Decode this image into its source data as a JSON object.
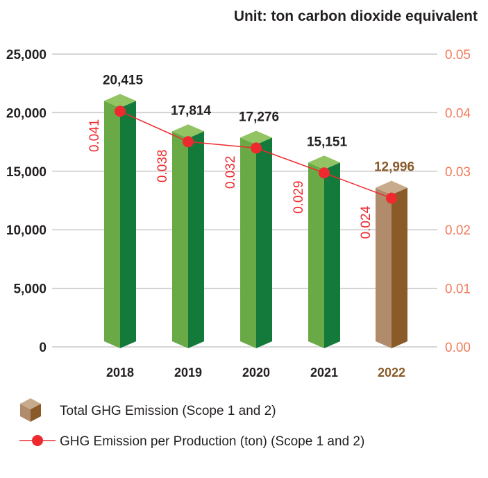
{
  "chart_data": {
    "type": "bar",
    "unit_note": "Unit: ton carbon dioxide equivalent",
    "categories": [
      "2018",
      "2019",
      "2020",
      "2021",
      "2022"
    ],
    "series": [
      {
        "name": "Total GHG Emission (Scope 1 and 2)",
        "axis": "left",
        "type": "bar",
        "values": [
          20415,
          17814,
          17276,
          15151,
          12996
        ],
        "value_labels": [
          "20,415",
          "17,814",
          "17,276",
          "15,151",
          "12,996"
        ]
      },
      {
        "name": "GHG Emission per Production (ton) (Scope 1 and 2)",
        "axis": "right",
        "type": "line",
        "values": [
          0.041,
          0.038,
          0.032,
          0.029,
          0.024
        ],
        "value_labels": [
          "0.041",
          "0.038",
          "0.032",
          "0.029",
          "0.024"
        ]
      }
    ],
    "left_axis": {
      "ylim": [
        0,
        25000
      ],
      "ticks": [
        "0",
        "5,000",
        "10,000",
        "15,000",
        "20,000",
        "25,000"
      ]
    },
    "right_axis": {
      "ylim": [
        0,
        0.05
      ],
      "ticks": [
        "0.00",
        "0.01",
        "0.02",
        "0.03",
        "0.04",
        "0.05"
      ]
    },
    "grid": true,
    "legend_placement": "bottom-left",
    "highlight_category": "2022"
  },
  "colors": {
    "bar_front": "#6aaa46",
    "bar_side": "#137a3c",
    "bar_top": "#92c463",
    "highlight_front": "#b08c6c",
    "highlight_side": "#8a5a28",
    "highlight_top": "#c8ab8c",
    "highlight_text": "#8a5a28",
    "line": "#ee2a2f",
    "right_axis_text": "#f07a5a",
    "grid": "#c8c8c8",
    "text": "#231f20"
  }
}
